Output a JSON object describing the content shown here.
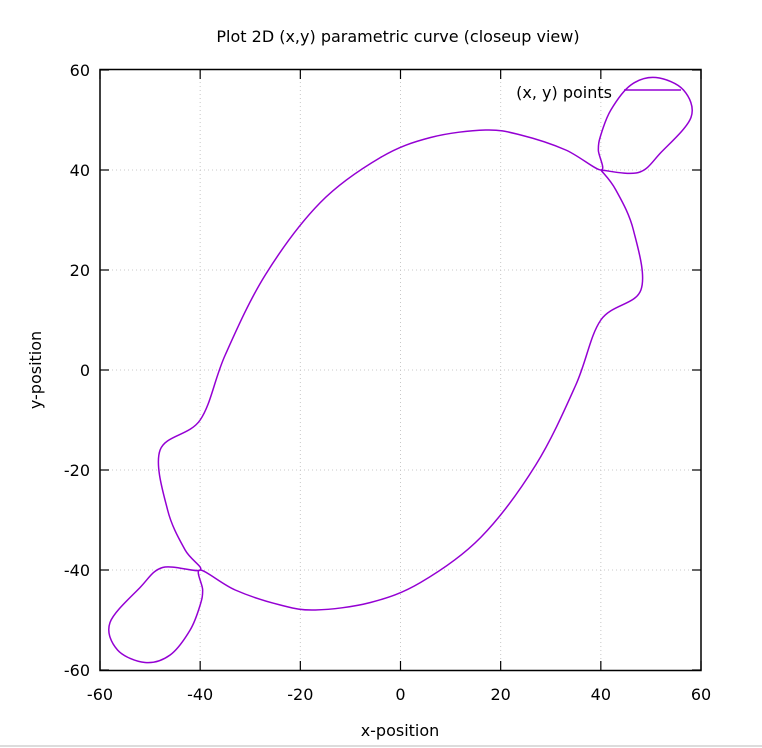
{
  "chart_data": {
    "type": "line",
    "title": "Plot 2D (x,y) parametric curve (closeup view)",
    "xlabel": "x-position",
    "ylabel": "y-position",
    "xlim": [
      -60,
      60
    ],
    "ylim": [
      -60,
      60
    ],
    "xticks": [
      -60,
      -40,
      -20,
      0,
      20,
      40,
      60
    ],
    "yticks": [
      -60,
      -40,
      -20,
      0,
      20,
      40,
      60
    ],
    "xtick_labels": [
      "-60",
      "-40",
      "-20",
      "0",
      "20",
      "40",
      "60"
    ],
    "ytick_labels": [
      "-60",
      "-40",
      "-20",
      "0",
      "20",
      "40",
      "60"
    ],
    "grid": true,
    "legend_position": "top-right",
    "series": [
      {
        "name": "(x, y) points",
        "color": "#9400d3",
        "points": [
          [
            40,
            40
          ],
          [
            47.5,
            39.5
          ],
          [
            52,
            43.5
          ],
          [
            58,
            50.5
          ],
          [
            56.5,
            56
          ],
          [
            51,
            58.5
          ],
          [
            46,
            57
          ],
          [
            42,
            52
          ],
          [
            40,
            47
          ],
          [
            39.5,
            44
          ],
          [
            40,
            40
          ],
          [
            33,
            44
          ],
          [
            24,
            47
          ],
          [
            17,
            48
          ],
          [
            6,
            46.5
          ],
          [
            -4,
            42.5
          ],
          [
            -16,
            33.5
          ],
          [
            -27,
            19
          ],
          [
            -35,
            3
          ],
          [
            -40,
            -10
          ],
          [
            -48,
            -16
          ],
          [
            -46.5,
            -28
          ],
          [
            -43,
            -36
          ],
          [
            -40,
            -40
          ],
          [
            -47.5,
            -39.5
          ],
          [
            -52,
            -43.5
          ],
          [
            -58,
            -50.5
          ],
          [
            -56.5,
            -56
          ],
          [
            -51,
            -58.5
          ],
          [
            -46,
            -57
          ],
          [
            -42,
            -52
          ],
          [
            -40,
            -47
          ],
          [
            -39.5,
            -44
          ],
          [
            -40,
            -40
          ],
          [
            -33,
            -44
          ],
          [
            -24,
            -47
          ],
          [
            -17,
            -48
          ],
          [
            -6,
            -46.5
          ],
          [
            4,
            -42.5
          ],
          [
            16,
            -33.5
          ],
          [
            27,
            -19
          ],
          [
            35,
            -3
          ],
          [
            40,
            10
          ],
          [
            48,
            16
          ],
          [
            46.5,
            28
          ],
          [
            43,
            36
          ],
          [
            40,
            40
          ]
        ]
      }
    ]
  }
}
